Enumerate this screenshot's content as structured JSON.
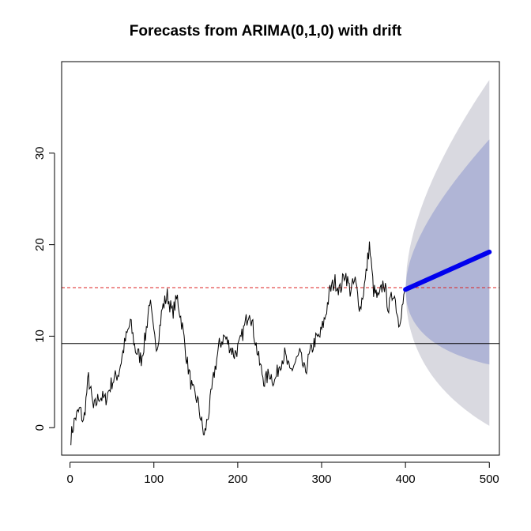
{
  "chart_data": {
    "type": "line",
    "title": "Forecasts from ARIMA(0,1,0) with drift",
    "xlabel": "",
    "ylabel": "",
    "xlim": [
      -10,
      512
    ],
    "ylim": [
      -3,
      40
    ],
    "x_ticks": [
      0,
      100,
      200,
      300,
      400,
      500
    ],
    "y_ticks": [
      0,
      10,
      20,
      30
    ],
    "grid": false,
    "colors": {
      "series": "#000000",
      "forecast": "#0000ee",
      "band80": "#b0b5d6",
      "band95": "#d9d9e0",
      "mean_line": "#dd2222",
      "hline": "#000000"
    },
    "hlines": [
      {
        "y": 9.2,
        "style": "solid"
      },
      {
        "y": 15.3,
        "style": "dashed"
      }
    ],
    "series_anchors": [
      [
        1,
        -1
      ],
      [
        6,
        1
      ],
      [
        12,
        2
      ],
      [
        16,
        0.5
      ],
      [
        22,
        5.5
      ],
      [
        28,
        2
      ],
      [
        35,
        3.5
      ],
      [
        42,
        3
      ],
      [
        50,
        5
      ],
      [
        58,
        6
      ],
      [
        66,
        9.5
      ],
      [
        72,
        11.5
      ],
      [
        78,
        8.5
      ],
      [
        85,
        7.5
      ],
      [
        90,
        10
      ],
      [
        95,
        14
      ],
      [
        100,
        10
      ],
      [
        104,
        9
      ],
      [
        110,
        13
      ],
      [
        116,
        14.5
      ],
      [
        122,
        12.5
      ],
      [
        128,
        14.2
      ],
      [
        134,
        11
      ],
      [
        140,
        7
      ],
      [
        146,
        4
      ],
      [
        152,
        3
      ],
      [
        156,
        1
      ],
      [
        160,
        -1
      ],
      [
        166,
        2
      ],
      [
        172,
        6
      ],
      [
        178,
        9
      ],
      [
        184,
        10
      ],
      [
        190,
        9
      ],
      [
        196,
        8
      ],
      [
        202,
        9
      ],
      [
        208,
        11
      ],
      [
        214,
        13
      ],
      [
        220,
        10
      ],
      [
        226,
        7
      ],
      [
        232,
        5
      ],
      [
        238,
        6
      ],
      [
        244,
        5
      ],
      [
        250,
        7
      ],
      [
        256,
        8
      ],
      [
        262,
        6
      ],
      [
        268,
        7
      ],
      [
        274,
        8
      ],
      [
        280,
        6
      ],
      [
        286,
        8
      ],
      [
        292,
        9.5
      ],
      [
        298,
        10
      ],
      [
        304,
        12
      ],
      [
        310,
        15
      ],
      [
        316,
        16
      ],
      [
        322,
        15
      ],
      [
        328,
        17
      ],
      [
        334,
        15
      ],
      [
        340,
        16
      ],
      [
        346,
        13
      ],
      [
        352,
        16
      ],
      [
        357,
        20
      ],
      [
        362,
        15
      ],
      [
        368,
        14
      ],
      [
        374,
        16
      ],
      [
        380,
        13
      ],
      [
        386,
        15
      ],
      [
        392,
        11.5
      ],
      [
        398,
        14
      ],
      [
        400,
        15
      ]
    ],
    "forecast": {
      "x": [
        400,
        500
      ],
      "y": [
        15.1,
        19.2
      ],
      "band80_upper_end": 31.5,
      "band80_lower_end": 6.9,
      "band95_upper_end": 38.0,
      "band95_lower_end": 0.2
    }
  }
}
